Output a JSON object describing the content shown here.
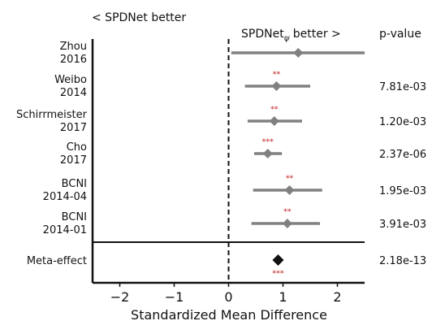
{
  "chart_data": {
    "type": "forest",
    "xlabel": "Standardized Mean Difference",
    "xlim": [
      -2.5,
      2.5
    ],
    "xticks": [
      -2,
      -1,
      0,
      1,
      2
    ],
    "xtick_labels": [
      "−2",
      "−1",
      "0",
      "1",
      "2"
    ],
    "left_header": "< SPDNet better",
    "right_header": "SPDNetψ better >",
    "right_header_main": "SPDNet",
    "right_header_sub": "ψ",
    "right_header_tail": " better >",
    "pvalue_header": "p-value",
    "reference_line": 0,
    "studies": [
      {
        "label": [
          "Zhou",
          "2016"
        ],
        "estimate": 1.28,
        "ci": [
          0.05,
          2.5
        ],
        "stars": "",
        "pvalue": ""
      },
      {
        "label": [
          "Weibo",
          "2014"
        ],
        "estimate": 0.88,
        "ci": [
          0.3,
          1.5
        ],
        "stars": "**",
        "pvalue": "7.81e-03"
      },
      {
        "label": [
          "Schirrmeister",
          "2017"
        ],
        "estimate": 0.84,
        "ci": [
          0.35,
          1.35
        ],
        "stars": "**",
        "pvalue": "1.20e-03"
      },
      {
        "label": [
          "Cho",
          "2017"
        ],
        "estimate": 0.72,
        "ci": [
          0.47,
          0.98
        ],
        "stars": "***",
        "pvalue": "2.37e-06"
      },
      {
        "label": [
          "BCNI",
          "2014-04"
        ],
        "estimate": 1.12,
        "ci": [
          0.45,
          1.72
        ],
        "stars": "**",
        "pvalue": "1.95e-03"
      },
      {
        "label": [
          "BCNI",
          "2014-01"
        ],
        "estimate": 1.08,
        "ci": [
          0.42,
          1.68
        ],
        "stars": "**",
        "pvalue": "3.91e-03"
      }
    ],
    "meta": {
      "label": "Meta-effect",
      "estimate": 0.91,
      "stars": "***",
      "pvalue": "2.18e-13"
    },
    "colors": {
      "marker": "#808080",
      "meta_marker": "#111111",
      "stars": "#d05050",
      "axis": "#111111"
    }
  }
}
